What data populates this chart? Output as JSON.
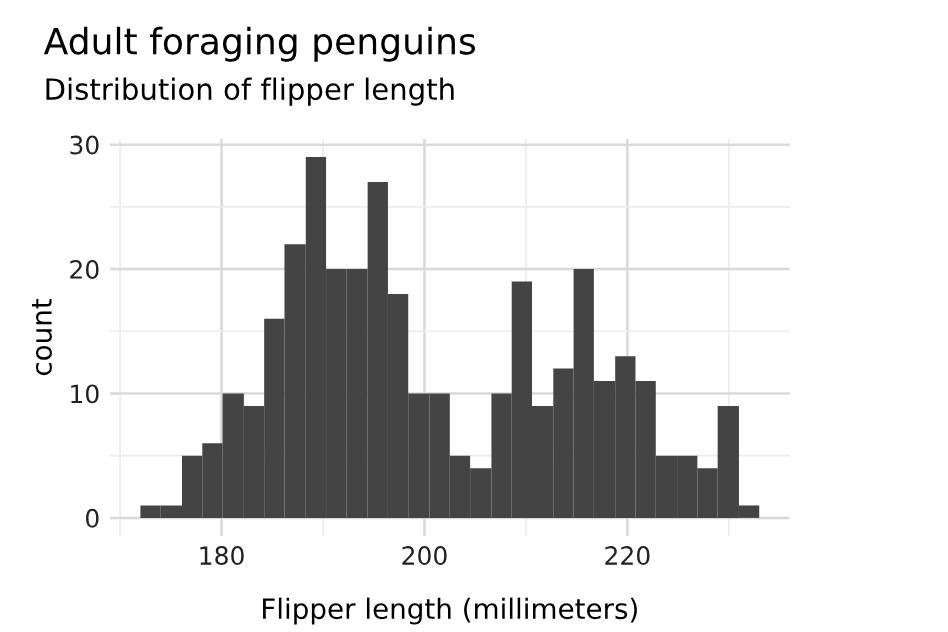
{
  "chart_data": {
    "type": "histogram",
    "title": "Adult foraging penguins",
    "subtitle": "Distribution of flipper length",
    "xlabel": "Flipper length (millimeters)",
    "ylabel": "count",
    "bins": [
      172.0,
      174.0,
      176.1,
      178.1,
      180.1,
      182.2,
      184.2,
      186.2,
      188.3,
      190.3,
      192.3,
      194.4,
      196.4,
      198.4,
      200.5,
      202.5,
      204.5,
      206.6,
      208.6,
      210.6,
      212.7,
      214.7,
      216.7,
      218.8,
      220.8,
      222.8,
      224.9,
      226.9,
      228.9,
      231.0,
      233.0
    ],
    "values": [
      1,
      1,
      5,
      6,
      10,
      9,
      16,
      22,
      29,
      20,
      20,
      27,
      18,
      10,
      10,
      5,
      4,
      10,
      19,
      9,
      12,
      20,
      11,
      13,
      11,
      5,
      5,
      4,
      9,
      1
    ],
    "color": "#444444",
    "xlim": [
      169,
      236
    ],
    "ylim": [
      -1.45,
      30.45
    ],
    "xticks": [
      {
        "value": 170,
        "label": null
      },
      180,
      {
        "value": 190,
        "label": null
      },
      200,
      {
        "value": 210,
        "label": null
      },
      220,
      {
        "value": 230,
        "label": null
      }
    ],
    "yticks": [
      0,
      {
        "value": 5,
        "label": null
      },
      10,
      {
        "value": 15,
        "label": null
      },
      20,
      {
        "value": 25,
        "label": null
      },
      30
    ],
    "grid": true
  }
}
